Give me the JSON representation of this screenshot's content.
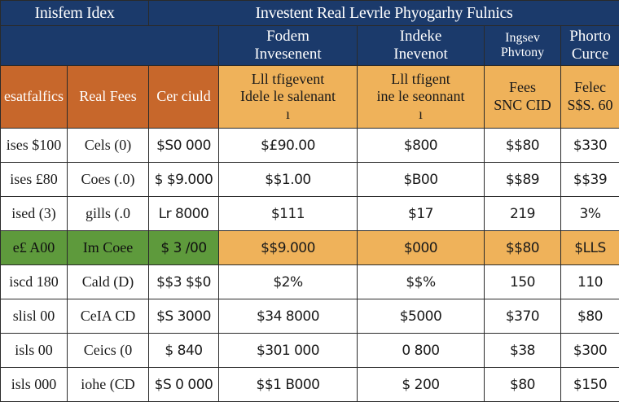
{
  "header": {
    "left_title": "Inisfem Idex",
    "main_title": "Investent Real Levrle Phyogarhy Fulnics"
  },
  "subheaders": [
    {
      "line1": "",
      "line2": ""
    },
    {
      "line1": "Fodem",
      "line2": "Invesenent"
    },
    {
      "line1": "Indeke",
      "line2": "Inevenot"
    },
    {
      "line1": "Ingsev",
      "line2": "Phvtony"
    },
    {
      "line1": "Phorto",
      "line2": "Curce"
    }
  ],
  "columns": [
    {
      "line1": "esatfalfics",
      "line2": "",
      "line3": "",
      "tone": "orange"
    },
    {
      "line1": "Real Fees",
      "line2": "",
      "line3": "",
      "tone": "orange"
    },
    {
      "line1": "Cer ciuld",
      "line2": "",
      "line3": "",
      "tone": "orange"
    },
    {
      "line1": "Lll tfigevent",
      "line2": "Idele le salenant",
      "line3": "ı",
      "tone": "peach"
    },
    {
      "line1": "Lll tfigent",
      "line2": "ine le seonnant",
      "line3": "ı",
      "tone": "peach"
    },
    {
      "line1": "Fees",
      "line2": "SNC CID",
      "line3": "",
      "tone": "peach"
    },
    {
      "line1": "Felec",
      "line2": "S$S. 60",
      "line3": "",
      "tone": "peach"
    }
  ],
  "rows": [
    {
      "cells": [
        "ises $100",
        "Cels (0)",
        "$S0 000",
        "$£90.00",
        "$800",
        "$$80",
        "$330"
      ],
      "highlight": false
    },
    {
      "cells": [
        "ises £80",
        "Coes (.0)",
        "$ $9.000",
        "$$1.00",
        "$B00",
        "$$89",
        "$$39"
      ],
      "highlight": false
    },
    {
      "cells": [
        "ised (3)",
        "gills (.0",
        "Lr 8000",
        "$111",
        "$17",
        "219",
        "3%"
      ],
      "highlight": false
    },
    {
      "cells": [
        "e£ A00",
        "Im Coee",
        "$ 3 /00",
        "$$9.000",
        "$000",
        "$$80",
        "$LLS"
      ],
      "highlight": true
    },
    {
      "cells": [
        "iscd 180",
        "Cald (D)",
        "$$3 $$0",
        "$2%",
        "$$%",
        "150",
        "110"
      ],
      "highlight": false
    },
    {
      "cells": [
        "slisl 00",
        "CeIA CD",
        "$S 3000",
        "$34 8000",
        "$5000",
        "$370",
        "$80"
      ],
      "highlight": false
    },
    {
      "cells": [
        "isls 00",
        "Ceics (0",
        "$ 840",
        "$301 000",
        "0 800",
        "$38",
        "$300"
      ],
      "highlight": false
    },
    {
      "cells": [
        "isls 000",
        "iohe (CD",
        "$S 0 000",
        "$$1 B000",
        "$ 200",
        "$80",
        "$150"
      ],
      "highlight": false
    }
  ]
}
